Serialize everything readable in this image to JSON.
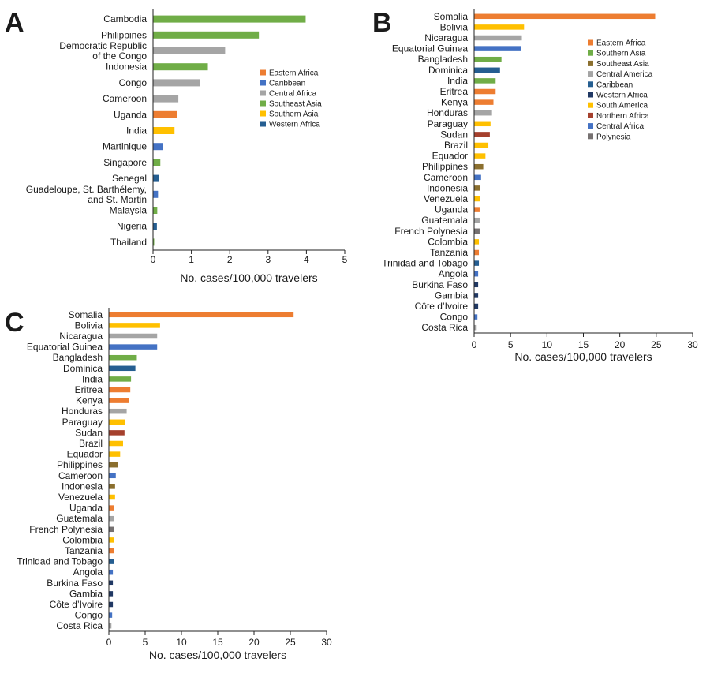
{
  "chart_data": [
    {
      "type": "bar",
      "panel": "A",
      "orientation": "horizontal",
      "xlabel": "No. cases/100,000 travelers",
      "xlim": [
        0,
        5
      ],
      "xticks": [
        "0",
        "1",
        "2",
        "3",
        "4",
        "5"
      ],
      "legend_position": "right",
      "legend": [
        {
          "name": "Eastern Africa",
          "color": "#ED7D31"
        },
        {
          "name": "Caribbean",
          "color": "#4472C4"
        },
        {
          "name": "Central Africa",
          "color": "#A5A5A5"
        },
        {
          "name": "Southeast Asia",
          "color": "#70AD47"
        },
        {
          "name": "Southern Asia",
          "color": "#FFC000"
        },
        {
          "name": "Western Africa",
          "color": "#255E91"
        }
      ],
      "bars": [
        {
          "category": [
            "Cambodia"
          ],
          "value": 3.97,
          "region": "Southeast Asia"
        },
        {
          "category": [
            "Philippines"
          ],
          "value": 2.75,
          "region": "Southeast Asia"
        },
        {
          "category": [
            "Democratic Republic",
            "of the Congo"
          ],
          "value": 1.87,
          "region": "Central Africa"
        },
        {
          "category": [
            "Indonesia"
          ],
          "value": 1.42,
          "region": "Southeast Asia"
        },
        {
          "category": [
            "Congo"
          ],
          "value": 1.22,
          "region": "Central Africa"
        },
        {
          "category": [
            "Cameroon"
          ],
          "value": 0.65,
          "region": "Central Africa"
        },
        {
          "category": [
            "Uganda"
          ],
          "value": 0.62,
          "region": "Eastern Africa"
        },
        {
          "category": [
            "India"
          ],
          "value": 0.55,
          "region": "Southern Asia"
        },
        {
          "category": [
            "Martinique"
          ],
          "value": 0.24,
          "region": "Caribbean"
        },
        {
          "category": [
            "Singapore"
          ],
          "value": 0.18,
          "region": "Southeast Asia"
        },
        {
          "category": [
            "Senegal"
          ],
          "value": 0.15,
          "region": "Western Africa"
        },
        {
          "category": [
            "Guadeloupe, St. Barthélemy,",
            "and St. Martin"
          ],
          "value": 0.12,
          "region": "Caribbean"
        },
        {
          "category": [
            "Malaysia"
          ],
          "value": 0.1,
          "region": "Southeast Asia"
        },
        {
          "category": [
            "Nigeria"
          ],
          "value": 0.09,
          "region": "Western Africa"
        },
        {
          "category": [
            "Thailand"
          ],
          "value": 0.02,
          "region": "Southeast Asia"
        }
      ]
    },
    {
      "type": "bar",
      "panel": "B",
      "orientation": "horizontal",
      "xlabel": "No. cases/100,000 travelers",
      "xlim": [
        0,
        30
      ],
      "xticks": [
        "0",
        "5",
        "10",
        "15",
        "20",
        "25",
        "30"
      ],
      "legend_position": "right",
      "legend": [
        {
          "name": "Eastern Africa",
          "color": "#ED7D31"
        },
        {
          "name": "Southern Asia",
          "color": "#70AD47"
        },
        {
          "name": "Southeast Asia",
          "color": "#8B6F2E"
        },
        {
          "name": "Central America",
          "color": "#A5A5A5"
        },
        {
          "name": "Caribbean",
          "color": "#255E91"
        },
        {
          "name": "Western Africa",
          "color": "#203864"
        },
        {
          "name": "South America",
          "color": "#FFC000"
        },
        {
          "name": "Northern Africa",
          "color": "#A5402D"
        },
        {
          "name": "Central Africa",
          "color": "#4472C4"
        },
        {
          "name": "Polynesia",
          "color": "#767171"
        }
      ],
      "bars": [
        {
          "category": [
            "Somalia"
          ],
          "value": 24.8,
          "region": "Eastern Africa"
        },
        {
          "category": [
            "Bolivia"
          ],
          "value": 6.8,
          "region": "South America"
        },
        {
          "category": [
            "Nicaragua"
          ],
          "value": 6.5,
          "region": "Central America"
        },
        {
          "category": [
            "Equatorial Guinea"
          ],
          "value": 6.4,
          "region": "Central Africa"
        },
        {
          "category": [
            "Bangladesh"
          ],
          "value": 3.7,
          "region": "Southern Asia"
        },
        {
          "category": [
            "Dominica"
          ],
          "value": 3.5,
          "region": "Caribbean"
        },
        {
          "category": [
            "India"
          ],
          "value": 2.9,
          "region": "Southern Asia"
        },
        {
          "category": [
            "Eritrea"
          ],
          "value": 2.9,
          "region": "Eastern Africa"
        },
        {
          "category": [
            "Kenya"
          ],
          "value": 2.6,
          "region": "Eastern Africa"
        },
        {
          "category": [
            "Honduras"
          ],
          "value": 2.4,
          "region": "Central America"
        },
        {
          "category": [
            "Paraguay"
          ],
          "value": 2.2,
          "region": "South America"
        },
        {
          "category": [
            "Sudan"
          ],
          "value": 2.1,
          "region": "Northern Africa"
        },
        {
          "category": [
            "Brazil"
          ],
          "value": 1.9,
          "region": "South America"
        },
        {
          "category": [
            "Equador"
          ],
          "value": 1.5,
          "region": "South America"
        },
        {
          "category": [
            "Philippines"
          ],
          "value": 1.2,
          "region": "Southeast Asia"
        },
        {
          "category": [
            "Cameroon"
          ],
          "value": 0.9,
          "region": "Central Africa"
        },
        {
          "category": [
            "Indonesia"
          ],
          "value": 0.8,
          "region": "Southeast Asia"
        },
        {
          "category": [
            "Venezuela"
          ],
          "value": 0.8,
          "region": "South America"
        },
        {
          "category": [
            "Uganda"
          ],
          "value": 0.7,
          "region": "Eastern Africa"
        },
        {
          "category": [
            "Guatemala"
          ],
          "value": 0.7,
          "region": "Central America"
        },
        {
          "category": [
            "French Polynesia"
          ],
          "value": 0.7,
          "region": "Polynesia"
        },
        {
          "category": [
            "Colombia"
          ],
          "value": 0.6,
          "region": "South America"
        },
        {
          "category": [
            "Tanzania"
          ],
          "value": 0.6,
          "region": "Eastern Africa"
        },
        {
          "category": [
            "Trinidad and Tobago"
          ],
          "value": 0.6,
          "region": "Caribbean"
        },
        {
          "category": [
            "Angola"
          ],
          "value": 0.5,
          "region": "Central Africa"
        },
        {
          "category": [
            "Burkina Faso"
          ],
          "value": 0.5,
          "region": "Western Africa"
        },
        {
          "category": [
            "Gambia"
          ],
          "value": 0.5,
          "region": "Western Africa"
        },
        {
          "category": [
            "Côte d’Ivoire"
          ],
          "value": 0.5,
          "region": "Western Africa"
        },
        {
          "category": [
            "Congo"
          ],
          "value": 0.4,
          "region": "Central Africa"
        },
        {
          "category": [
            "Costa Rica"
          ],
          "value": 0.3,
          "region": "Central America"
        }
      ]
    },
    {
      "type": "bar",
      "panel": "C",
      "orientation": "horizontal",
      "xlabel": "No. cases/100,000 travelers",
      "xlim": [
        0,
        30
      ],
      "xticks": [
        "0",
        "5",
        "10",
        "15",
        "20",
        "25",
        "30"
      ],
      "legend": [],
      "bars": [
        {
          "category": [
            "Somalia"
          ],
          "value": 25.4,
          "region": "Eastern Africa"
        },
        {
          "category": [
            "Bolivia"
          ],
          "value": 7.0,
          "region": "South America"
        },
        {
          "category": [
            "Nicaragua"
          ],
          "value": 6.6,
          "region": "Central America"
        },
        {
          "category": [
            "Equatorial Guinea"
          ],
          "value": 6.6,
          "region": "Central Africa"
        },
        {
          "category": [
            "Bangladesh"
          ],
          "value": 3.8,
          "region": "Southern Asia"
        },
        {
          "category": [
            "Dominica"
          ],
          "value": 3.6,
          "region": "Caribbean"
        },
        {
          "category": [
            "India"
          ],
          "value": 3.0,
          "region": "Southern Asia"
        },
        {
          "category": [
            "Eritrea"
          ],
          "value": 2.9,
          "region": "Eastern Africa"
        },
        {
          "category": [
            "Kenya"
          ],
          "value": 2.7,
          "region": "Eastern Africa"
        },
        {
          "category": [
            "Honduras"
          ],
          "value": 2.4,
          "region": "Central America"
        },
        {
          "category": [
            "Paraguay"
          ],
          "value": 2.2,
          "region": "South America"
        },
        {
          "category": [
            "Sudan"
          ],
          "value": 2.1,
          "region": "Northern Africa"
        },
        {
          "category": [
            "Brazil"
          ],
          "value": 1.9,
          "region": "South America"
        },
        {
          "category": [
            "Equador"
          ],
          "value": 1.5,
          "region": "South America"
        },
        {
          "category": [
            "Philippines"
          ],
          "value": 1.2,
          "region": "Southeast Asia"
        },
        {
          "category": [
            "Cameroon"
          ],
          "value": 0.9,
          "region": "Central Africa"
        },
        {
          "category": [
            "Indonesia"
          ],
          "value": 0.8,
          "region": "Southeast Asia"
        },
        {
          "category": [
            "Venezuela"
          ],
          "value": 0.8,
          "region": "South America"
        },
        {
          "category": [
            "Uganda"
          ],
          "value": 0.7,
          "region": "Eastern Africa"
        },
        {
          "category": [
            "Guatemala"
          ],
          "value": 0.7,
          "region": "Central America"
        },
        {
          "category": [
            "French Polynesia"
          ],
          "value": 0.7,
          "region": "Polynesia"
        },
        {
          "category": [
            "Colombia"
          ],
          "value": 0.6,
          "region": "South America"
        },
        {
          "category": [
            "Tanzania"
          ],
          "value": 0.6,
          "region": "Eastern Africa"
        },
        {
          "category": [
            "Trinidad and Tobago"
          ],
          "value": 0.6,
          "region": "Caribbean"
        },
        {
          "category": [
            "Angola"
          ],
          "value": 0.5,
          "region": "Central Africa"
        },
        {
          "category": [
            "Burkina Faso"
          ],
          "value": 0.5,
          "region": "Western Africa"
        },
        {
          "category": [
            "Gambia"
          ],
          "value": 0.5,
          "region": "Western Africa"
        },
        {
          "category": [
            "Côte d’Ivoire"
          ],
          "value": 0.5,
          "region": "Western Africa"
        },
        {
          "category": [
            "Congo"
          ],
          "value": 0.4,
          "region": "Central Africa"
        },
        {
          "category": [
            "Costa Rica"
          ],
          "value": 0.3,
          "region": "Central America"
        }
      ],
      "region_colors": {
        "Eastern Africa": "#ED7D31",
        "Southern Asia": "#70AD47",
        "Southeast Asia": "#8B6F2E",
        "Central America": "#A5A5A5",
        "Caribbean": "#255E91",
        "Western Africa": "#203864",
        "South America": "#FFC000",
        "Northern Africa": "#A5402D",
        "Central Africa": "#4472C4",
        "Polynesia": "#767171"
      }
    }
  ]
}
